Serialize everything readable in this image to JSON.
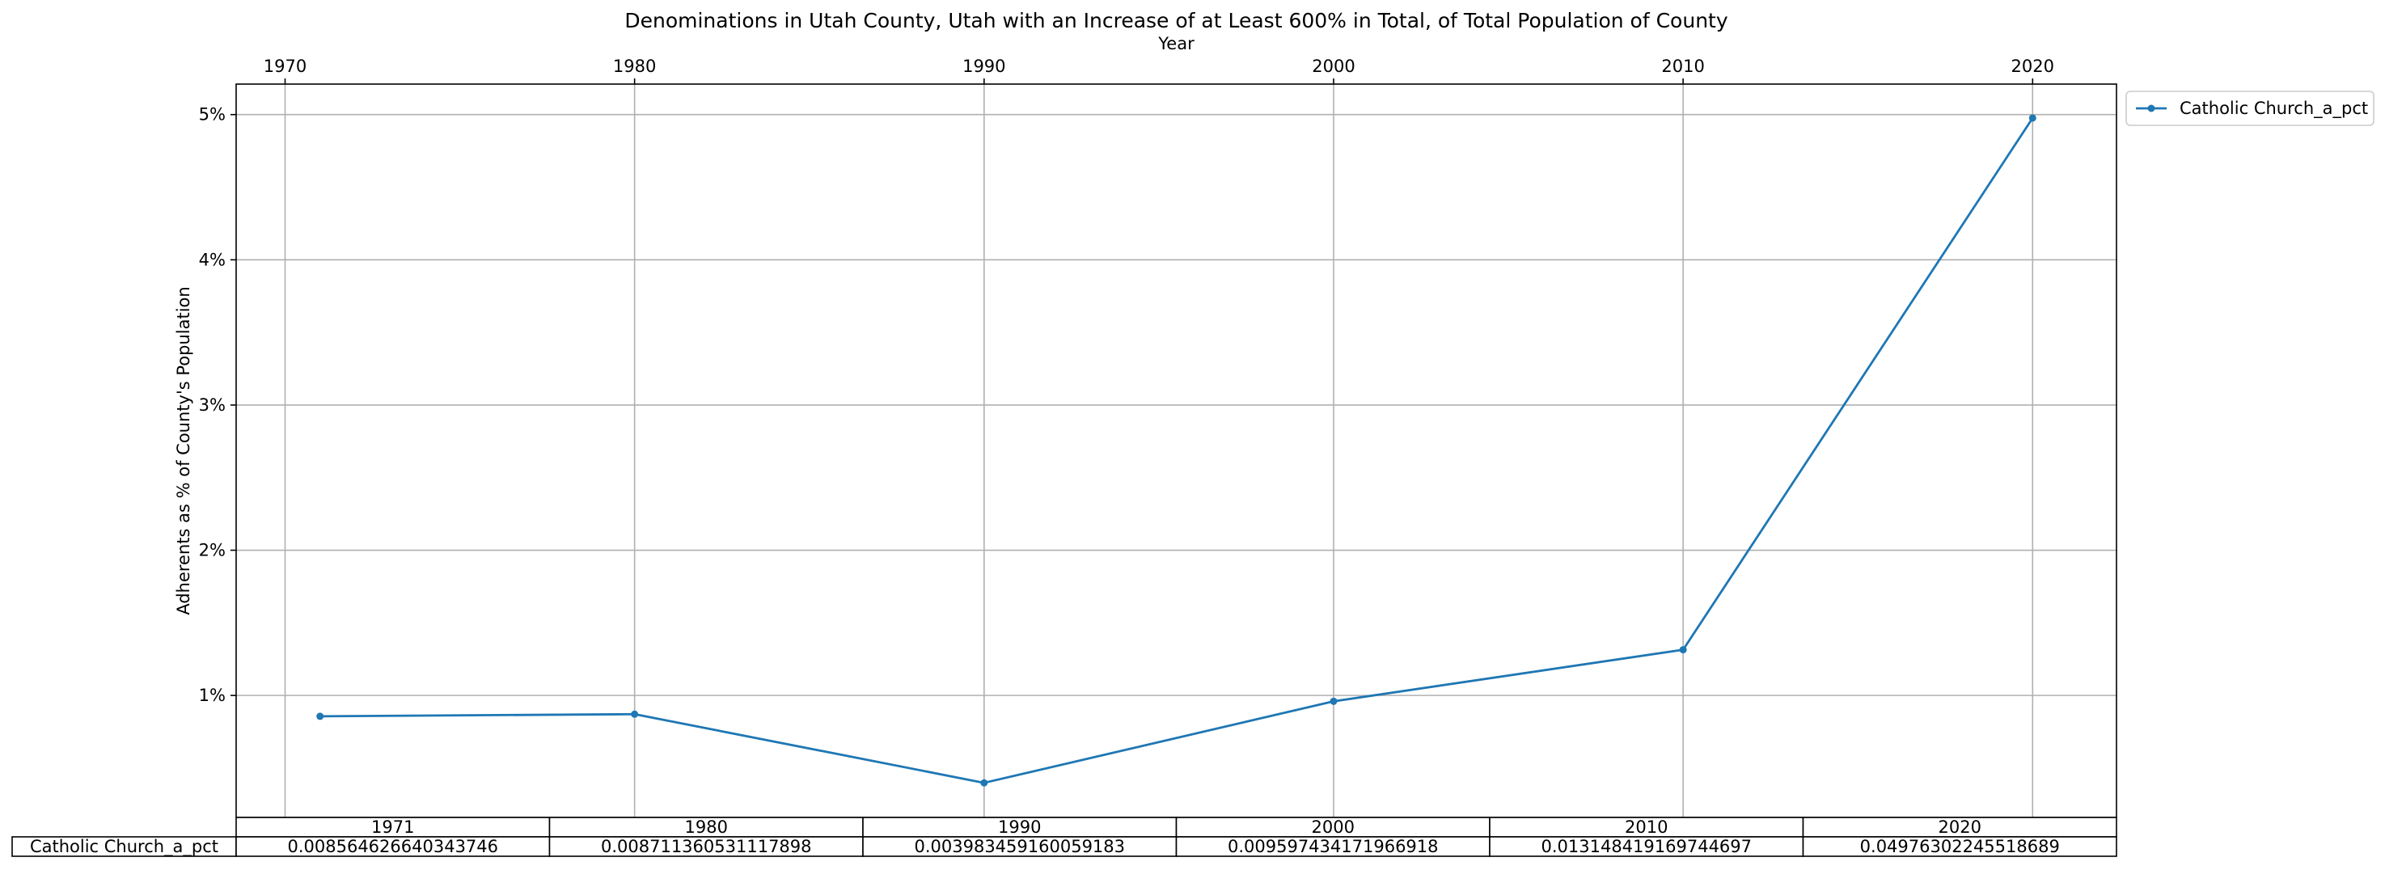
{
  "chart_data": {
    "type": "line",
    "title": "Denominations in Utah County, Utah with an Increase of at Least 600% in Total, of Total Population of County",
    "xlabel": "Year",
    "ylabel": "Adherents as % of County's Population",
    "x": [
      1971,
      1980,
      1990,
      2000,
      2010,
      2020
    ],
    "x_ticks": [
      "1970",
      "1980",
      "1990",
      "2000",
      "2010",
      "2020"
    ],
    "y_ticks": [
      "1%",
      "2%",
      "3%",
      "4%",
      "5%"
    ],
    "xlim": [
      1968.6,
      2022.4
    ],
    "ylim": [
      0.0016,
      0.0521
    ],
    "grid": true,
    "legend_position": "outside-top-right",
    "series": [
      {
        "name": "Catholic Church_a_pct",
        "color": "#1f77b4",
        "values": [
          0.008564626640343746,
          0.008711360531117898,
          0.003983459160059183,
          0.009597434171966918,
          0.013148419169744697,
          0.04976302245518689
        ]
      }
    ],
    "table": {
      "col_labels": [
        "1971",
        "1980",
        "1990",
        "2000",
        "2010",
        "2020"
      ],
      "row_label": "Catholic Church_a_pct",
      "cells": [
        "0.008564626640343746",
        "0.008711360531117898",
        "0.003983459160059183",
        "0.009597434171966918",
        "0.013148419169744697",
        "0.04976302245518689"
      ]
    }
  }
}
